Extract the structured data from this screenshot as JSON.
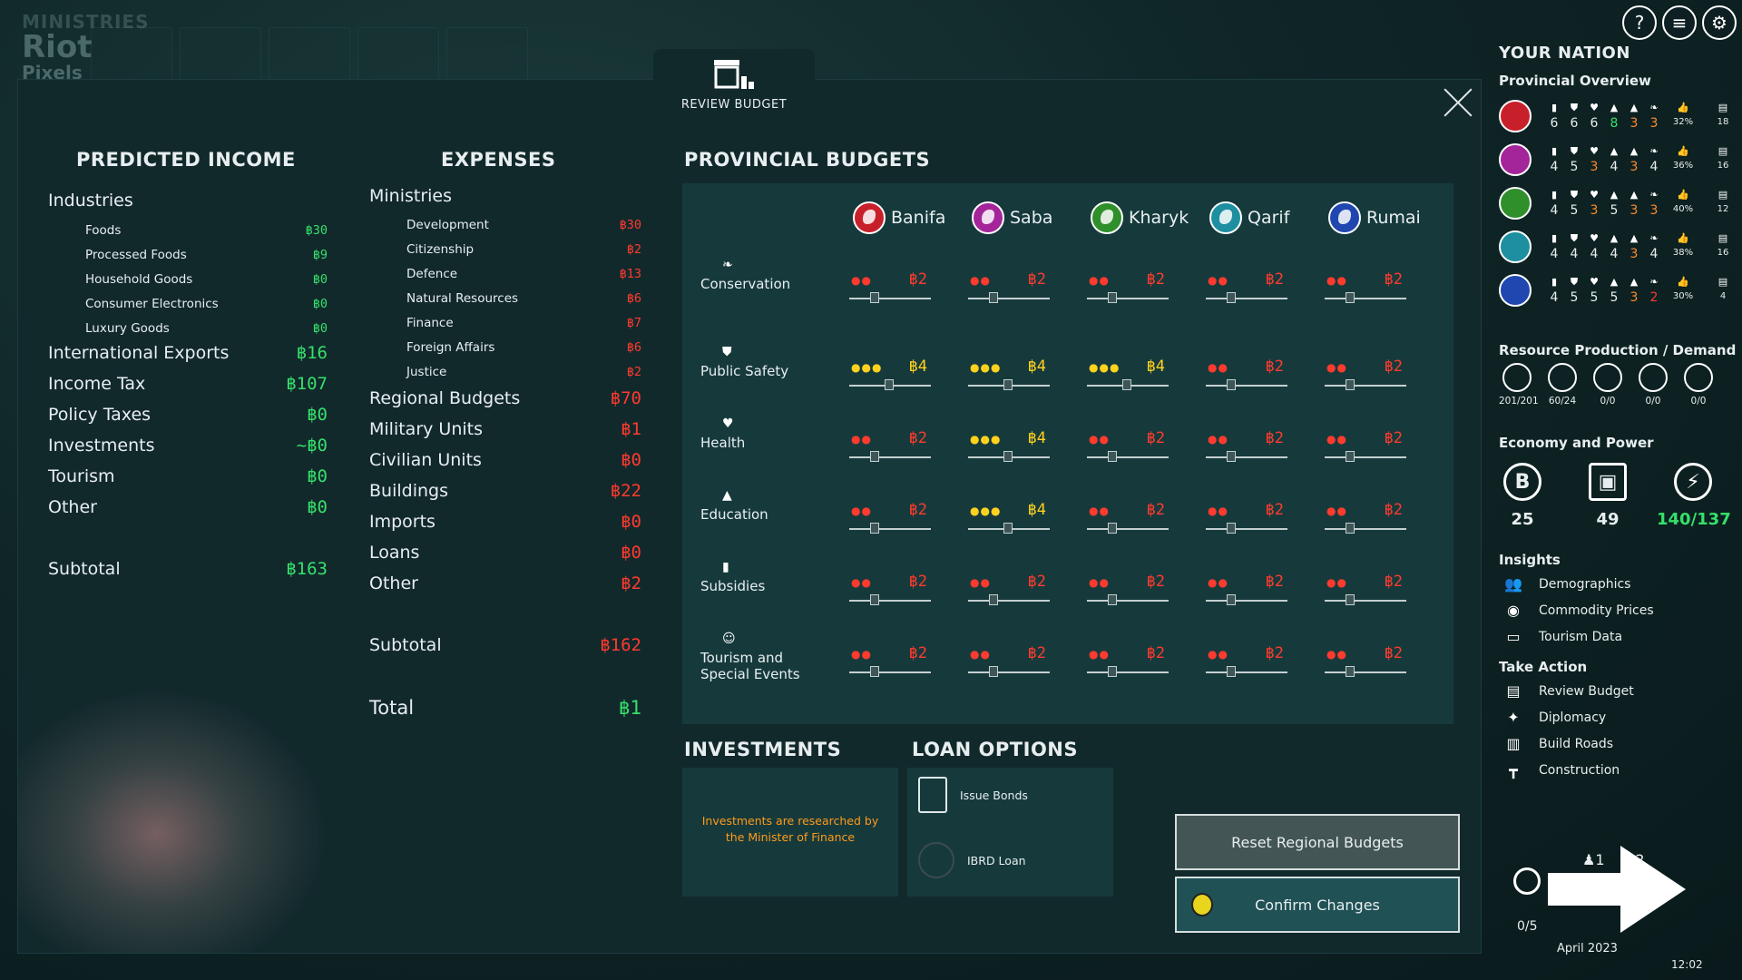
{
  "watermark": {
    "line1": "MINISTRIES",
    "line2": "Riot",
    "line3": "Pixels"
  },
  "review_tab": {
    "label": "REVIEW BUDGET"
  },
  "income": {
    "title": "PREDICTED INCOME",
    "industries_label": "Industries",
    "industries": [
      {
        "label": "Foods",
        "value": "฿30"
      },
      {
        "label": "Processed Foods",
        "value": "฿9"
      },
      {
        "label": "Household Goods",
        "value": "฿0"
      },
      {
        "label": "Consumer Electronics",
        "value": "฿0"
      },
      {
        "label": "Luxury Goods",
        "value": "฿0"
      }
    ],
    "items": [
      {
        "label": "International Exports",
        "value": "฿16"
      },
      {
        "label": "Income Tax",
        "value": "฿107"
      },
      {
        "label": "Policy Taxes",
        "value": "฿0"
      },
      {
        "label": "Investments",
        "value": "~฿0"
      },
      {
        "label": "Tourism",
        "value": "฿0"
      },
      {
        "label": "Other",
        "value": "฿0"
      }
    ],
    "subtotal_label": "Subtotal",
    "subtotal_value": "฿163"
  },
  "expenses": {
    "title": "EXPENSES",
    "ministries_label": "Ministries",
    "ministries": [
      {
        "label": "Development",
        "value": "฿30"
      },
      {
        "label": "Citizenship",
        "value": "฿2"
      },
      {
        "label": "Defence",
        "value": "฿13"
      },
      {
        "label": "Natural Resources",
        "value": "฿6"
      },
      {
        "label": "Finance",
        "value": "฿7"
      },
      {
        "label": "Foreign Affairs",
        "value": "฿6"
      },
      {
        "label": "Justice",
        "value": "฿2"
      }
    ],
    "items": [
      {
        "label": "Regional Budgets",
        "value": "฿70"
      },
      {
        "label": "Military Units",
        "value": "฿1"
      },
      {
        "label": "Civilian Units",
        "value": "฿0"
      },
      {
        "label": "Buildings",
        "value": "฿22"
      },
      {
        "label": "Imports",
        "value": "฿0"
      },
      {
        "label": "Loans",
        "value": "฿0"
      },
      {
        "label": "Other",
        "value": "฿2"
      }
    ],
    "subtotal_label": "Subtotal",
    "subtotal_value": "฿162",
    "total_label": "Total",
    "total_value": "฿1"
  },
  "provincial": {
    "title": "PROVINCIAL BUDGETS",
    "provinces": [
      {
        "name": "Banifa",
        "color": "#c8202a"
      },
      {
        "name": "Saba",
        "color": "#a4259a"
      },
      {
        "name": "Kharyk",
        "color": "#2f8f2a"
      },
      {
        "name": "Qarif",
        "color": "#1d8fa0"
      },
      {
        "name": "Rumai",
        "color": "#2046b0"
      }
    ],
    "categories": [
      {
        "label": "Conservation",
        "icon": "leaf-icon",
        "glyph": "❧"
      },
      {
        "label": "Public Safety",
        "icon": "shield-icon",
        "glyph": "⛊"
      },
      {
        "label": "Health",
        "icon": "heart-icon",
        "glyph": "♥"
      },
      {
        "label": "Education",
        "icon": "graduation-cap-icon",
        "glyph": "▲"
      },
      {
        "label": "Subsidies",
        "icon": "chart-bars-icon",
        "glyph": "▮"
      },
      {
        "label": "Tourism and Special Events",
        "icon": "masks-icon",
        "glyph": "☺"
      }
    ],
    "cells": [
      [
        {
          "v": "฿2",
          "lvl": 2,
          "pos": 0.3
        },
        {
          "v": "฿2",
          "lvl": 2,
          "pos": 0.3
        },
        {
          "v": "฿2",
          "lvl": 2,
          "pos": 0.3
        },
        {
          "v": "฿2",
          "lvl": 2,
          "pos": 0.3
        },
        {
          "v": "฿2",
          "lvl": 2,
          "pos": 0.3
        }
      ],
      [
        {
          "v": "฿4",
          "lvl": 3,
          "pos": 0.5
        },
        {
          "v": "฿4",
          "lvl": 3,
          "pos": 0.5
        },
        {
          "v": "฿4",
          "lvl": 3,
          "pos": 0.5
        },
        {
          "v": "฿2",
          "lvl": 2,
          "pos": 0.3
        },
        {
          "v": "฿2",
          "lvl": 2,
          "pos": 0.3
        }
      ],
      [
        {
          "v": "฿2",
          "lvl": 2,
          "pos": 0.3
        },
        {
          "v": "฿4",
          "lvl": 3,
          "pos": 0.5
        },
        {
          "v": "฿2",
          "lvl": 2,
          "pos": 0.3
        },
        {
          "v": "฿2",
          "lvl": 2,
          "pos": 0.3
        },
        {
          "v": "฿2",
          "lvl": 2,
          "pos": 0.3
        }
      ],
      [
        {
          "v": "฿2",
          "lvl": 2,
          "pos": 0.3
        },
        {
          "v": "฿4",
          "lvl": 3,
          "pos": 0.5
        },
        {
          "v": "฿2",
          "lvl": 2,
          "pos": 0.3
        },
        {
          "v": "฿2",
          "lvl": 2,
          "pos": 0.3
        },
        {
          "v": "฿2",
          "lvl": 2,
          "pos": 0.3
        }
      ],
      [
        {
          "v": "฿2",
          "lvl": 2,
          "pos": 0.3
        },
        {
          "v": "฿2",
          "lvl": 2,
          "pos": 0.3
        },
        {
          "v": "฿2",
          "lvl": 2,
          "pos": 0.3
        },
        {
          "v": "฿2",
          "lvl": 2,
          "pos": 0.3
        },
        {
          "v": "฿2",
          "lvl": 2,
          "pos": 0.3
        }
      ],
      [
        {
          "v": "฿2",
          "lvl": 2,
          "pos": 0.3
        },
        {
          "v": "฿2",
          "lvl": 2,
          "pos": 0.3
        },
        {
          "v": "฿2",
          "lvl": 2,
          "pos": 0.3
        },
        {
          "v": "฿2",
          "lvl": 2,
          "pos": 0.3
        },
        {
          "v": "฿2",
          "lvl": 2,
          "pos": 0.3
        }
      ]
    ]
  },
  "investments": {
    "title": "INVESTMENTS",
    "message": "Investments are researched by the Minister of Finance"
  },
  "loans": {
    "title": "LOAN OPTIONS",
    "issue_bonds": "Issue Bonds",
    "ibrd_loan": "IBRD Loan"
  },
  "buttons": {
    "reset": "Reset Regional Budgets",
    "confirm": "Confirm Changes"
  },
  "sidebar": {
    "title": "YOUR NATION",
    "overview_label": "Provincial Overview",
    "overview": [
      {
        "color": "#c8202a",
        "vals": [
          "6",
          "6",
          "6",
          "8",
          "3",
          "3"
        ],
        "cls": [
          "",
          "",
          "",
          "green",
          "orange",
          "orange"
        ],
        "pct": "32%",
        "last": "18"
      },
      {
        "color": "#a4259a",
        "vals": [
          "4",
          "5",
          "3",
          "4",
          "3",
          "4"
        ],
        "cls": [
          "",
          "",
          "orange",
          "",
          "orange",
          ""
        ],
        "pct": "36%",
        "last": "16"
      },
      {
        "color": "#2f8f2a",
        "vals": [
          "4",
          "5",
          "3",
          "5",
          "3",
          "3"
        ],
        "cls": [
          "",
          "",
          "orange",
          "",
          "orange",
          "orange"
        ],
        "pct": "40%",
        "last": "12"
      },
      {
        "color": "#1d8fa0",
        "vals": [
          "4",
          "4",
          "4",
          "4",
          "3",
          "4"
        ],
        "cls": [
          "",
          "",
          "",
          "",
          "orange",
          ""
        ],
        "pct": "38%",
        "last": "16"
      },
      {
        "color": "#2046b0",
        "vals": [
          "4",
          "5",
          "5",
          "5",
          "3",
          "2"
        ],
        "cls": [
          "",
          "",
          "",
          "",
          "orange",
          "red"
        ],
        "pct": "30%",
        "last": "4"
      }
    ],
    "resource_label": "Resource Production / Demand",
    "resources": [
      "201/201",
      "60/24",
      "0/0",
      "0/0",
      "0/0"
    ],
    "economy_label": "Economy and Power",
    "economy": {
      "money": "25",
      "treasury": "49",
      "power": "140/137"
    },
    "insights_label": "Insights",
    "insights": [
      "Demographics",
      "Commodity Prices",
      "Tourism Data"
    ],
    "actions_label": "Take Action",
    "actions": [
      "Review Budget",
      "Diplomacy",
      "Build Roads",
      "Construction"
    ],
    "turn": {
      "agents1": "1",
      "agents2": "2",
      "progress": "0/5",
      "date": "April 2023",
      "time": "12:02"
    }
  }
}
